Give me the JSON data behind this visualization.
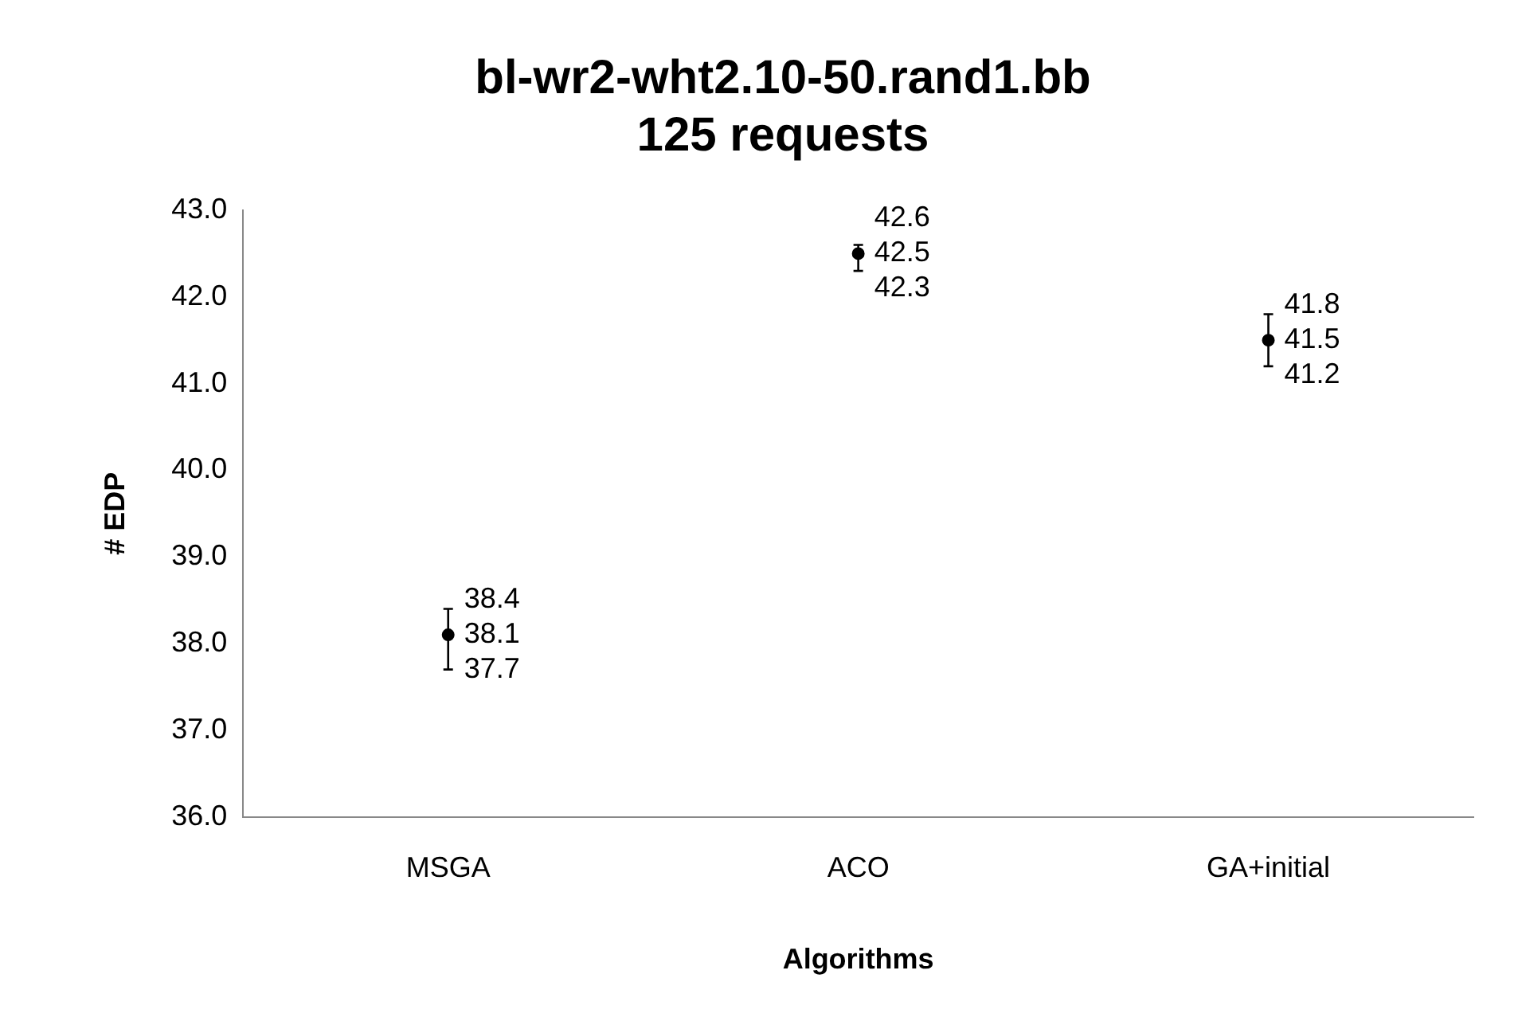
{
  "chart_data": {
    "type": "scatter",
    "title": "bl-wr2-wht2.10-50.rand1.bb\n125 requests",
    "xlabel": "Algorithms",
    "ylabel": "# EDP",
    "categories": [
      "MSGA",
      "ACO",
      "GA+initial"
    ],
    "values": [
      38.1,
      42.5,
      41.5
    ],
    "errors": [
      [
        37.7,
        38.4
      ],
      [
        42.3,
        42.6
      ],
      [
        41.2,
        41.8
      ]
    ],
    "annotations": [
      {
        "text": "38.4",
        "x": "MSGA",
        "y": 38.4
      },
      {
        "text": "37.7",
        "x": "MSGA",
        "y": 37.7
      },
      {
        "text": "42.6",
        "x": "ACO",
        "y": 42.6
      },
      {
        "text": "42.3",
        "x": "ACO",
        "y": 42.3
      },
      {
        "text": "41.8",
        "x": "GA+initial",
        "y": 41.8
      },
      {
        "text": "41.2",
        "x": "GA+initial",
        "y": 41.2
      }
    ],
    "color": "#000000",
    "marker": "circle",
    "data_labels": true,
    "grid": false,
    "legend": false,
    "ylim": [
      36,
      43
    ],
    "yticks": [
      {
        "value": 36,
        "label": "36.0"
      },
      {
        "value": 37,
        "label": "37.0"
      },
      {
        "value": 38,
        "label": "38.0"
      },
      {
        "value": 39,
        "label": "39.0"
      },
      {
        "value": 40,
        "label": "40.0"
      },
      {
        "value": 41,
        "label": "41.0"
      },
      {
        "value": 42,
        "label": "42.0"
      },
      {
        "value": 43,
        "label": "43.0"
      }
    ]
  }
}
